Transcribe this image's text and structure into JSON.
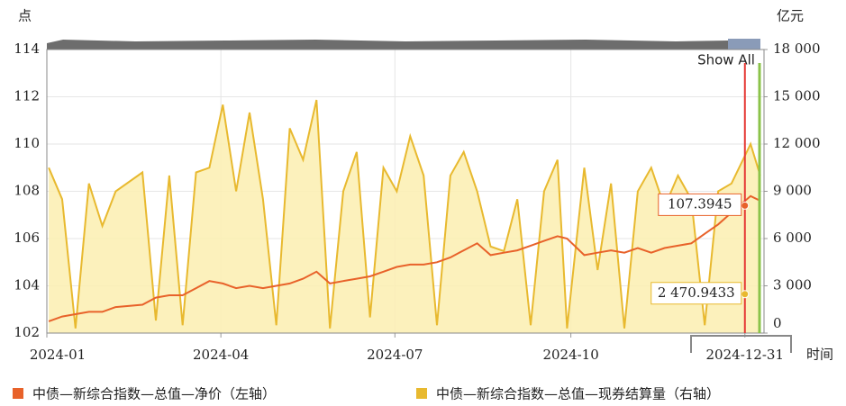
{
  "chart_data": {
    "type": "line-area",
    "y_axis_title": "点",
    "y2_axis_title": "亿元",
    "x_axis_title": "时间",
    "button": "Show All",
    "x": [
      "2024-01-02",
      "2024-01-09",
      "2024-01-16",
      "2024-01-23",
      "2024-01-30",
      "2024-02-06",
      "2024-02-20",
      "2024-02-27",
      "2024-03-05",
      "2024-03-12",
      "2024-03-19",
      "2024-03-26",
      "2024-04-02",
      "2024-04-09",
      "2024-04-16",
      "2024-04-23",
      "2024-04-30",
      "2024-05-07",
      "2024-05-14",
      "2024-05-21",
      "2024-05-28",
      "2024-06-04",
      "2024-06-11",
      "2024-06-18",
      "2024-06-25",
      "2024-07-02",
      "2024-07-09",
      "2024-07-16",
      "2024-07-23",
      "2024-07-30",
      "2024-08-06",
      "2024-08-13",
      "2024-08-20",
      "2024-08-27",
      "2024-09-03",
      "2024-09-10",
      "2024-09-17",
      "2024-09-24",
      "2024-09-29",
      "2024-10-08",
      "2024-10-15",
      "2024-10-22",
      "2024-10-29",
      "2024-11-05",
      "2024-11-12",
      "2024-11-19",
      "2024-11-26",
      "2024-12-03",
      "2024-12-10",
      "2024-12-17",
      "2024-12-24",
      "2025-01-03",
      "2025-01-08"
    ],
    "series": [
      {
        "name": "中债—新综合指数—总值—净价（左轴）",
        "color": "#e8622a",
        "axis": "y",
        "kind": "line",
        "values": [
          102.5,
          102.7,
          102.8,
          102.9,
          102.9,
          103.1,
          103.2,
          103.5,
          103.6,
          103.6,
          103.9,
          104.2,
          104.1,
          103.9,
          104.0,
          103.9,
          104.0,
          104.1,
          104.3,
          104.6,
          104.1,
          104.2,
          104.3,
          104.4,
          104.6,
          104.8,
          104.9,
          104.9,
          105.0,
          105.2,
          105.5,
          105.8,
          105.3,
          105.4,
          105.5,
          105.7,
          105.9,
          106.1,
          106.0,
          105.3,
          105.4,
          105.5,
          105.4,
          105.6,
          105.4,
          105.6,
          105.7,
          105.8,
          106.2,
          106.6,
          107.1,
          107.8,
          107.6
        ]
      },
      {
        "name": "中债—新综合指数—总值—现券结算量（右轴）",
        "color": "#e8b92f",
        "axis": "y2",
        "kind": "area",
        "values": [
          10500,
          8500,
          300,
          9500,
          6800,
          9000,
          10200,
          800,
          10000,
          500,
          10200,
          10500,
          14500,
          9000,
          14000,
          8500,
          500,
          13000,
          11000,
          14800,
          300,
          9000,
          11500,
          1000,
          10500,
          9000,
          12500,
          10000,
          500,
          10000,
          11500,
          9000,
          5500,
          5200,
          8500,
          500,
          9000,
          11000,
          300,
          10500,
          4000,
          9500,
          300,
          9000,
          10500,
          8000,
          10000,
          8500,
          500,
          9000,
          9500,
          12000,
          10000
        ]
      }
    ],
    "xlim": [
      "2024-01-01",
      "2025-01-10"
    ],
    "xticks": [
      {
        "value": "2024-01-01",
        "label": "2024-01"
      },
      {
        "value": "2024-04-01",
        "label": "2024-04"
      },
      {
        "value": "2024-07-01",
        "label": "2024-07"
      },
      {
        "value": "2024-10-01",
        "label": "2024-10"
      },
      {
        "value": "2024-12-31",
        "label": "2024-12-31"
      }
    ],
    "ylim": [
      102,
      114
    ],
    "yticks": [
      102,
      104,
      106,
      108,
      110,
      112,
      114
    ],
    "y2lim": [
      0,
      18000
    ],
    "y2ticks": [
      0,
      {
        "value": 3000,
        "label": "3 000"
      },
      {
        "value": 6000,
        "label": "6 000"
      },
      {
        "value": 9000,
        "label": "9 000"
      },
      {
        "value": 12000,
        "label": "12 000"
      },
      {
        "value": 15000,
        "label": "15 000"
      },
      {
        "value": 18000,
        "label": "18 000"
      }
    ],
    "grid": true,
    "tooltip": {
      "x": "2024-12-31",
      "value": 107.3945,
      "value2": {
        "value": 2470.9433,
        "label": "2 470.9433"
      }
    }
  }
}
